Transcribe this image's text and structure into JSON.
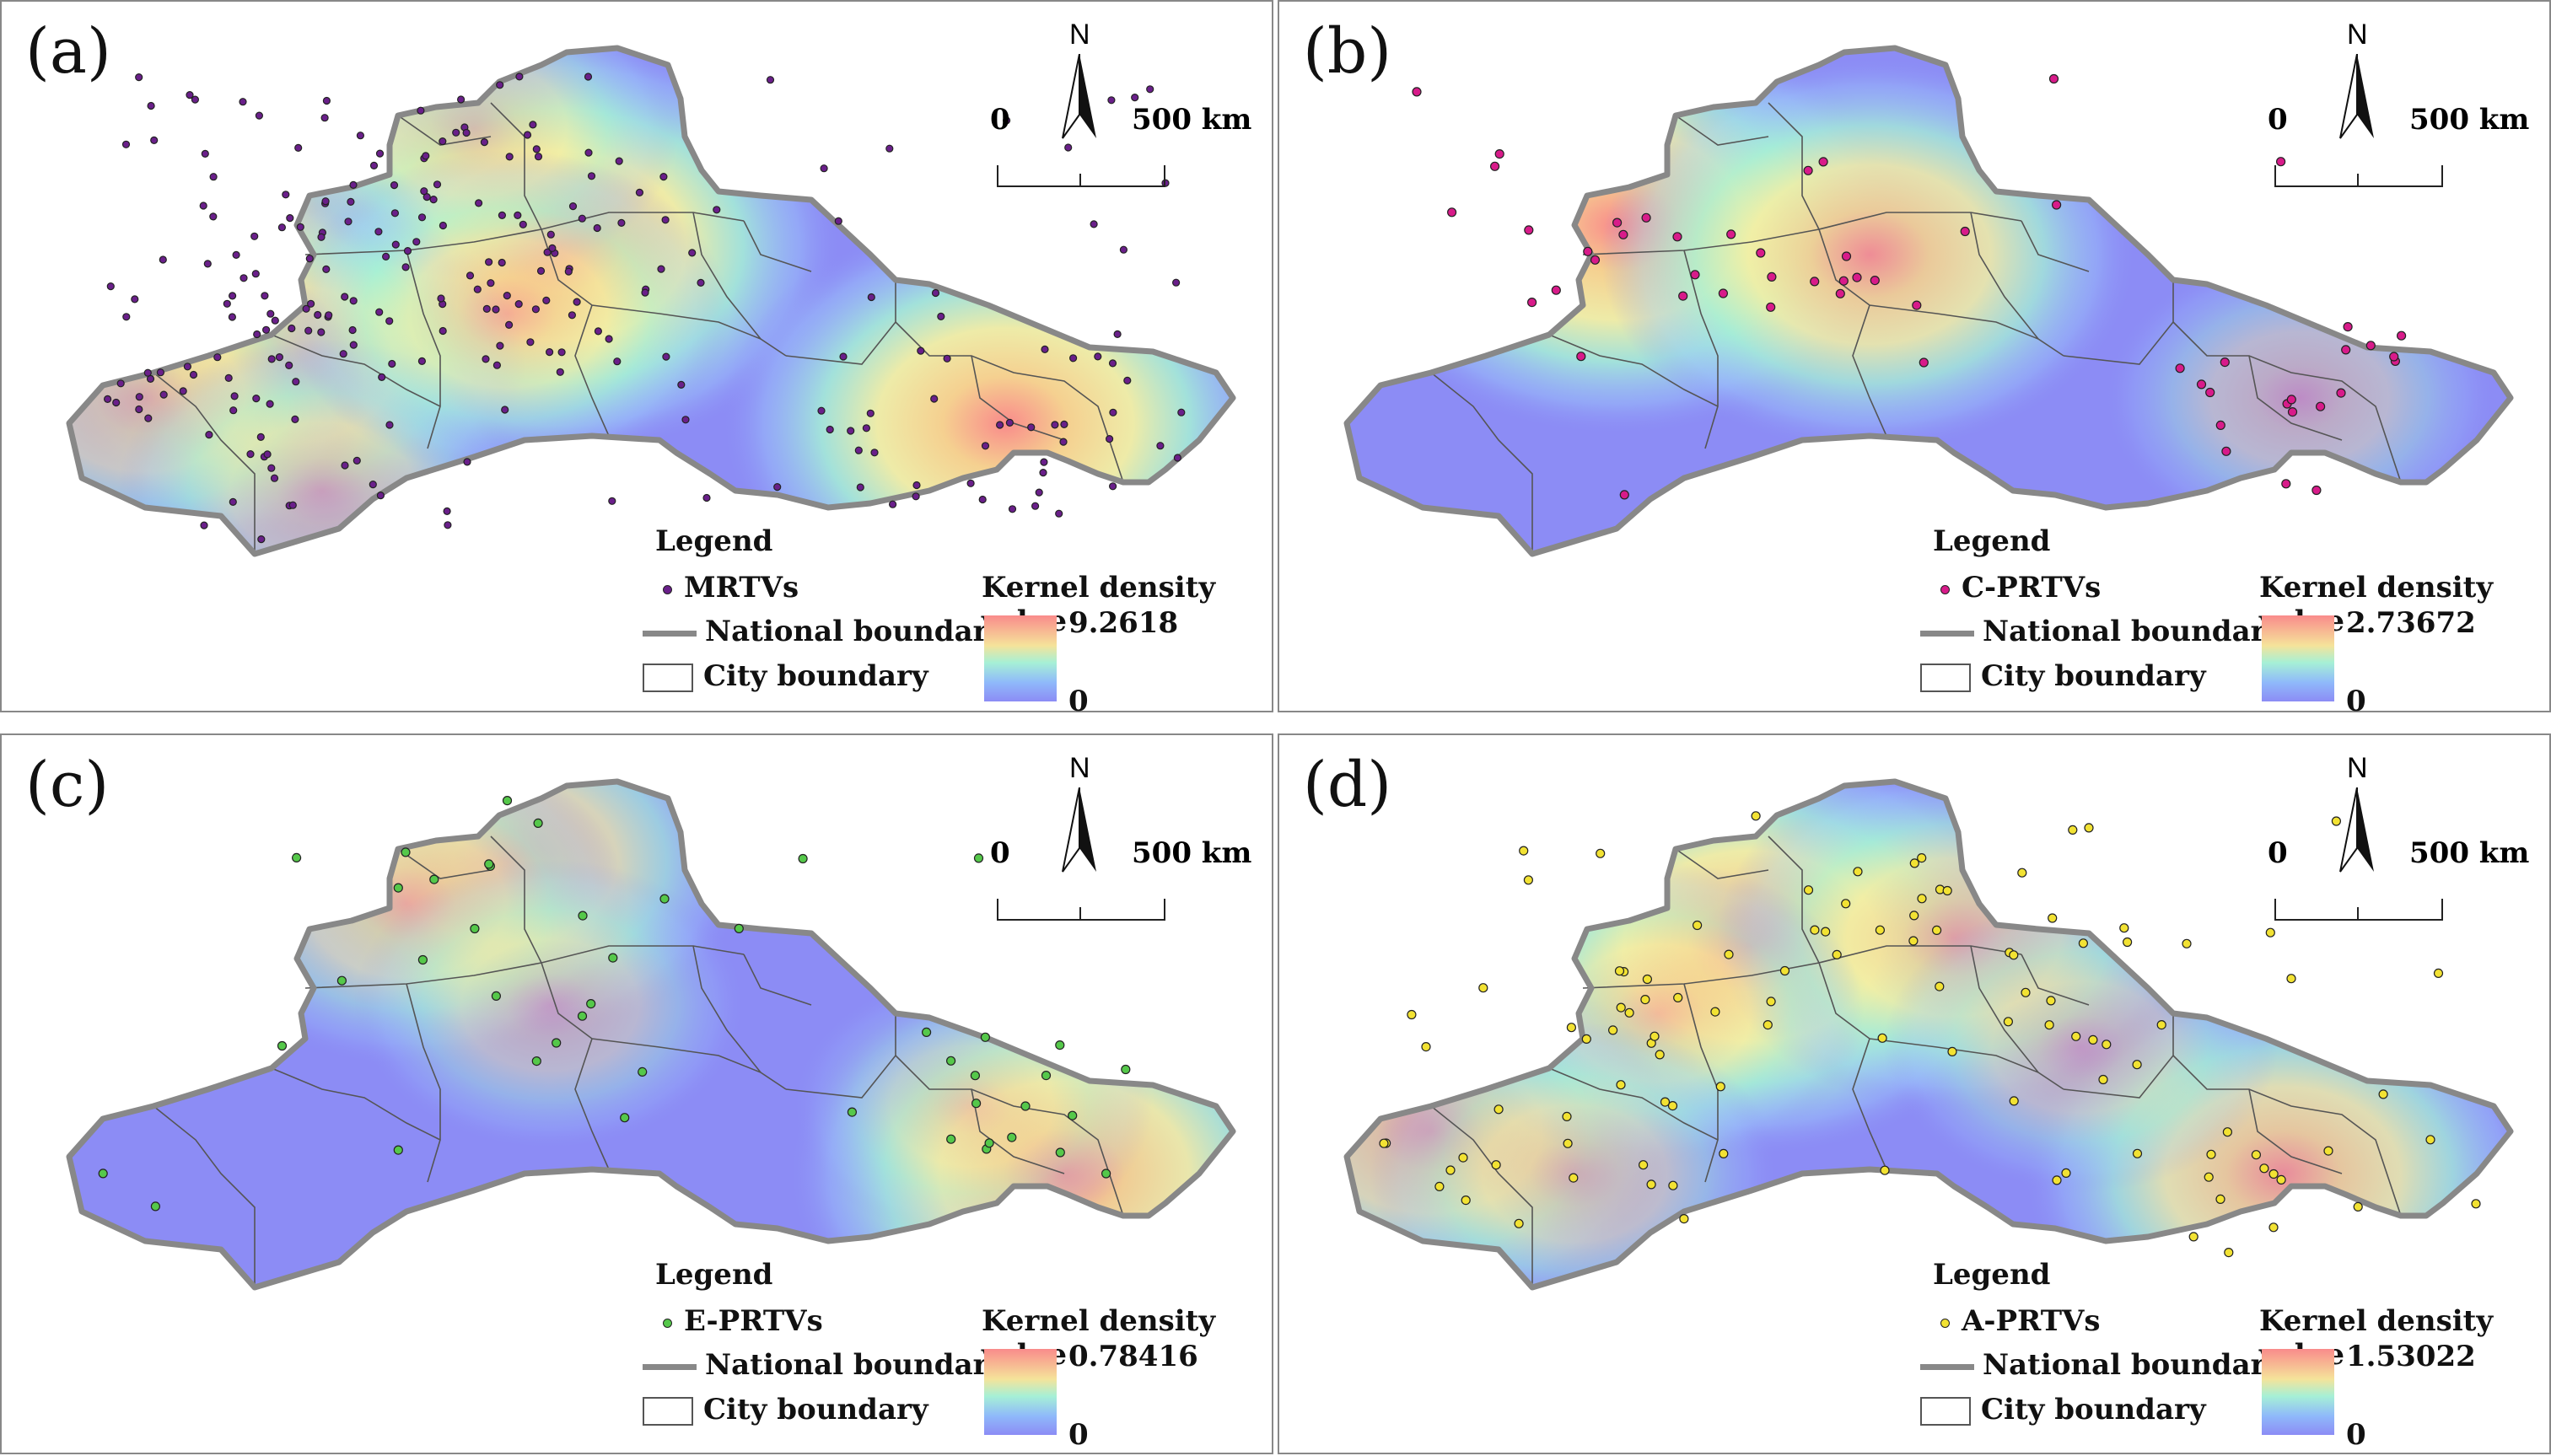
{
  "panels": [
    {
      "label": "(a)",
      "point_label": "MRTVs",
      "point_color": "#6a1f8a",
      "kernel_max": "9.2618",
      "kernel_min": "0",
      "hotspots": [
        [
          410,
          260,
          1.0
        ],
        [
          660,
          290,
          1.0
        ],
        [
          1190,
          500,
          1.0
        ],
        [
          280,
          340,
          0.6
        ],
        [
          340,
          430,
          0.7
        ],
        [
          170,
          470,
          0.6
        ],
        [
          380,
          580,
          0.5
        ],
        [
          560,
          150,
          0.5
        ],
        [
          600,
          370,
          0.6
        ]
      ]
    },
    {
      "label": "(b)",
      "point_label": "C-PRTVs",
      "point_color": "#d81b8a",
      "kernel_max": "2.73672",
      "kernel_min": "0",
      "hotspots": [
        [
          400,
          265,
          1.0
        ],
        [
          700,
          300,
          0.9
        ],
        [
          1210,
          470,
          0.45
        ]
      ]
    },
    {
      "label": "(c)",
      "point_label": "E-PRTVs",
      "point_color": "#55c84a",
      "kernel_max": "0.78416",
      "kernel_min": "0",
      "hotspots": [
        [
          600,
          150,
          0.75
        ],
        [
          480,
          200,
          0.6
        ],
        [
          1260,
          520,
          0.95
        ],
        [
          650,
          320,
          0.45
        ],
        [
          1150,
          440,
          0.35
        ]
      ]
    },
    {
      "label": "(d)",
      "point_label": "A-PRTVs",
      "point_color": "#f2e233",
      "kernel_max": "1.53022",
      "kernel_min": "0",
      "hotspots": [
        [
          560,
          250,
          1.0
        ],
        [
          800,
          240,
          0.7
        ],
        [
          180,
          470,
          0.75
        ],
        [
          1190,
          520,
          0.85
        ],
        [
          450,
          330,
          0.5
        ],
        [
          950,
          370,
          0.45
        ],
        [
          350,
          520,
          0.5
        ]
      ]
    }
  ],
  "legend": {
    "title": "Legend",
    "national_boundary": "National boundary",
    "city_boundary": "City boundary",
    "kernel_title": "Kernel density value"
  },
  "north_label": "N",
  "scale_start": "0",
  "scale_end": "500 km",
  "colors": {
    "background_density": "#8c8cf5",
    "high_density": "#f98b8b",
    "national_boundary": "#888888",
    "city_boundary": "#555555"
  }
}
